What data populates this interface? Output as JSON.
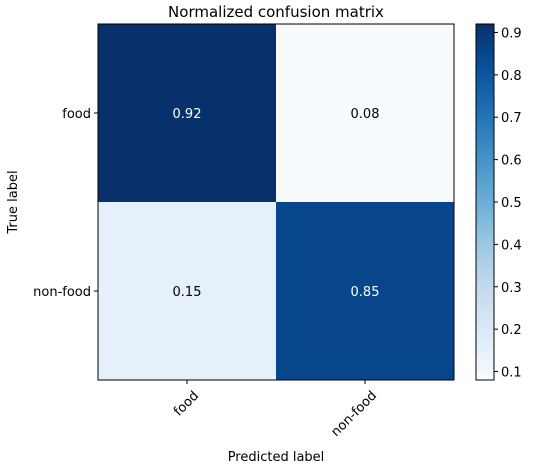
{
  "chart_data": {
    "type": "heatmap",
    "title": "Normalized confusion matrix",
    "xlabel": "Predicted label",
    "ylabel": "True label",
    "x_categories": [
      "food",
      "non-food"
    ],
    "y_categories": [
      "food",
      "non-food"
    ],
    "values": [
      [
        0.92,
        0.08
      ],
      [
        0.15,
        0.85
      ]
    ],
    "cell_labels": [
      [
        "0.92",
        "0.08"
      ],
      [
        "0.15",
        "0.85"
      ]
    ],
    "colormap": "Blues",
    "colorbar": {
      "range": [
        0.08,
        0.92
      ],
      "ticks": [
        0.1,
        0.2,
        0.3,
        0.4,
        0.5,
        0.6,
        0.7,
        0.8,
        0.9
      ],
      "tick_labels": [
        "0.1",
        "0.2",
        "0.3",
        "0.4",
        "0.5",
        "0.6",
        "0.7",
        "0.8",
        "0.9"
      ]
    },
    "x_tick_rotation_deg": 45,
    "grid": false
  }
}
